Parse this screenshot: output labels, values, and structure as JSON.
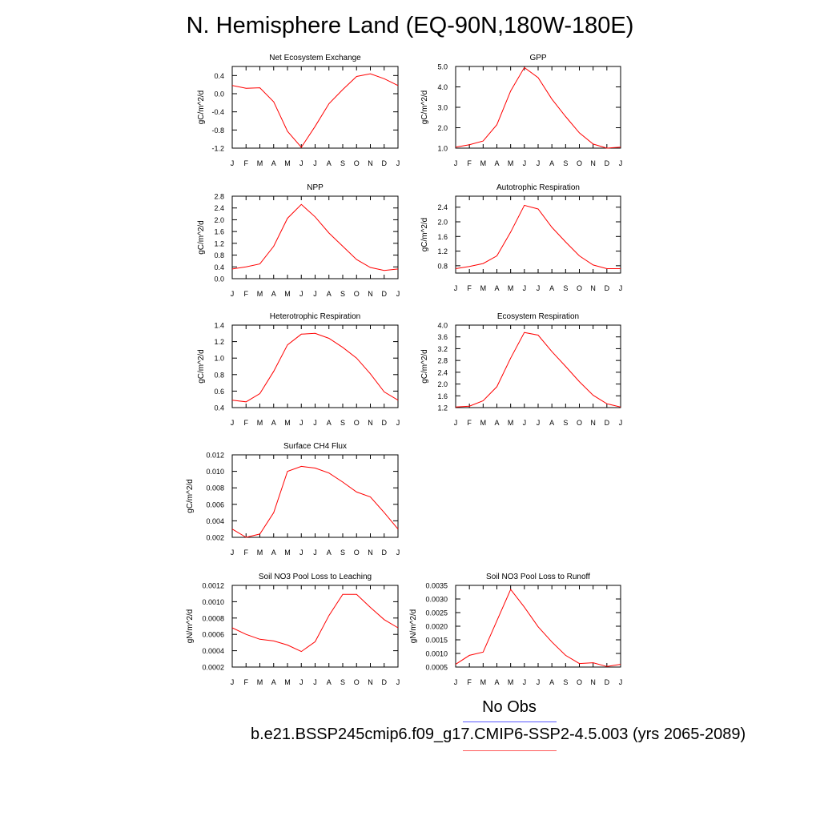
{
  "title": "N. Hemisphere Land (EQ-90N,180W-180E)",
  "legend": {
    "obs_label": "No Obs",
    "run_label": "b.e21.BSSP245cmip6.f09_g17.CMIP6-SSP2-4.5.003 (yrs 2065-2089)",
    "obs_color": "#5a5aff",
    "run_color": "#ff5a5a"
  },
  "series_color": "#ff0000",
  "chart_data": [
    {
      "type": "line",
      "title": "Net Ecosystem Exchange",
      "ylabel": "gC/m^2/d",
      "categories": [
        "J",
        "F",
        "M",
        "A",
        "M",
        "J",
        "J",
        "A",
        "S",
        "O",
        "N",
        "D",
        "J"
      ],
      "values": [
        0.18,
        0.12,
        0.13,
        -0.18,
        -0.83,
        -1.18,
        -0.72,
        -0.22,
        0.09,
        0.38,
        0.44,
        0.33,
        0.18
      ],
      "ylim": [
        -1.2,
        0.6
      ],
      "yticks": [
        -1.2,
        -0.8,
        -0.4,
        0.0,
        0.4
      ],
      "ytick_labels": [
        "-1.2",
        "-0.8",
        "-0.4",
        "0.0",
        "0.4"
      ]
    },
    {
      "type": "line",
      "title": "GPP",
      "ylabel": "gC/m^2/d",
      "categories": [
        "J",
        "F",
        "M",
        "A",
        "M",
        "J",
        "J",
        "A",
        "S",
        "O",
        "N",
        "D",
        "J"
      ],
      "values": [
        1.05,
        1.17,
        1.35,
        2.15,
        3.8,
        4.95,
        4.45,
        3.4,
        2.55,
        1.75,
        1.2,
        1.0,
        1.05
      ],
      "ylim": [
        1.0,
        5.0
      ],
      "yticks": [
        1.0,
        2.0,
        3.0,
        4.0,
        5.0
      ],
      "ytick_labels": [
        "1.0",
        "2.0",
        "3.0",
        "4.0",
        "5.0"
      ]
    },
    {
      "type": "line",
      "title": "NPP",
      "ylabel": "gC/m^2/d",
      "categories": [
        "J",
        "F",
        "M",
        "A",
        "M",
        "J",
        "J",
        "A",
        "S",
        "O",
        "N",
        "D",
        "J"
      ],
      "values": [
        0.33,
        0.4,
        0.5,
        1.1,
        2.05,
        2.52,
        2.1,
        1.55,
        1.1,
        0.65,
        0.38,
        0.28,
        0.33
      ],
      "ylim": [
        0.0,
        2.8
      ],
      "yticks": [
        0.0,
        0.4,
        0.8,
        1.2,
        1.6,
        2.0,
        2.4,
        2.8
      ],
      "ytick_labels": [
        "0.0",
        "0.4",
        "0.8",
        "1.2",
        "1.6",
        "2.0",
        "2.4",
        "2.8"
      ]
    },
    {
      "type": "line",
      "title": "Autotrophic Respiration",
      "ylabel": "gC/m^2/d",
      "categories": [
        "J",
        "F",
        "M",
        "A",
        "M",
        "J",
        "J",
        "A",
        "S",
        "O",
        "N",
        "D",
        "J"
      ],
      "values": [
        0.72,
        0.78,
        0.86,
        1.07,
        1.72,
        2.45,
        2.35,
        1.85,
        1.45,
        1.07,
        0.82,
        0.72,
        0.72
      ],
      "ylim": [
        0.6,
        2.7
      ],
      "yticks": [
        0.8,
        1.2,
        1.6,
        2.0,
        2.4
      ],
      "ytick_labels": [
        "0.8",
        "1.2",
        "1.6",
        "2.0",
        "2.4"
      ]
    },
    {
      "type": "line",
      "title": "Heterotrophic Respiration",
      "ylabel": "gC/m^2/d",
      "categories": [
        "J",
        "F",
        "M",
        "A",
        "M",
        "J",
        "J",
        "A",
        "S",
        "O",
        "N",
        "D",
        "J"
      ],
      "values": [
        0.49,
        0.47,
        0.57,
        0.84,
        1.16,
        1.29,
        1.3,
        1.24,
        1.13,
        1.0,
        0.81,
        0.59,
        0.49
      ],
      "ylim": [
        0.4,
        1.4
      ],
      "yticks": [
        0.4,
        0.6,
        0.8,
        1.0,
        1.2,
        1.4
      ],
      "ytick_labels": [
        "0.4",
        "0.6",
        "0.8",
        "1.0",
        "1.2",
        "1.4"
      ]
    },
    {
      "type": "line",
      "title": "Ecosystem Respiration",
      "ylabel": "gC/m^2/d",
      "categories": [
        "J",
        "F",
        "M",
        "A",
        "M",
        "J",
        "J",
        "A",
        "S",
        "O",
        "N",
        "D",
        "J"
      ],
      "values": [
        1.22,
        1.25,
        1.43,
        1.91,
        2.88,
        3.75,
        3.66,
        3.1,
        2.6,
        2.08,
        1.62,
        1.33,
        1.22
      ],
      "ylim": [
        1.2,
        4.0
      ],
      "yticks": [
        1.2,
        1.6,
        2.0,
        2.4,
        2.8,
        3.2,
        3.6,
        4.0
      ],
      "ytick_labels": [
        "1.2",
        "1.6",
        "2.0",
        "2.4",
        "2.8",
        "3.2",
        "3.6",
        "4.0"
      ]
    },
    {
      "type": "line",
      "title": "Surface CH4 Flux",
      "ylabel": "gC/m^2/d",
      "categories": [
        "J",
        "F",
        "M",
        "A",
        "M",
        "J",
        "J",
        "A",
        "S",
        "O",
        "N",
        "D",
        "J"
      ],
      "values": [
        0.003,
        0.002,
        0.0024,
        0.005,
        0.01,
        0.0106,
        0.0104,
        0.0098,
        0.0087,
        0.0075,
        0.0069,
        0.005,
        0.003
      ],
      "ylim": [
        0.002,
        0.012
      ],
      "yticks": [
        0.002,
        0.004,
        0.006,
        0.008,
        0.01,
        0.012
      ],
      "ytick_labels": [
        "0.002",
        "0.004",
        "0.006",
        "0.008",
        "0.010",
        "0.012"
      ]
    },
    {
      "type": "line",
      "title": "Soil NO3 Pool Loss to Leaching",
      "ylabel": "gN/m^2/d",
      "categories": [
        "J",
        "F",
        "M",
        "A",
        "M",
        "J",
        "J",
        "A",
        "S",
        "O",
        "N",
        "D",
        "J"
      ],
      "values": [
        0.00068,
        0.0006,
        0.00054,
        0.00052,
        0.00047,
        0.00039,
        0.00051,
        0.00083,
        0.00109,
        0.00109,
        0.00093,
        0.00078,
        0.00068
      ],
      "ylim": [
        0.0002,
        0.0012
      ],
      "yticks": [
        0.0002,
        0.0004,
        0.0006,
        0.0008,
        0.001,
        0.0012
      ],
      "ytick_labels": [
        "0.0002",
        "0.0004",
        "0.0006",
        "0.0008",
        "0.0010",
        "0.0012"
      ]
    },
    {
      "type": "line",
      "title": "Soil NO3 Pool Loss to Runoff",
      "ylabel": "gN/m^2/d",
      "categories": [
        "J",
        "F",
        "M",
        "A",
        "M",
        "J",
        "J",
        "A",
        "S",
        "O",
        "N",
        "D",
        "J"
      ],
      "values": [
        0.0006,
        0.00093,
        0.00105,
        0.0022,
        0.00335,
        0.0027,
        0.00198,
        0.00142,
        0.00093,
        0.00063,
        0.00066,
        0.00052,
        0.0006
      ],
      "ylim": [
        0.0005,
        0.0035
      ],
      "yticks": [
        0.0005,
        0.001,
        0.0015,
        0.002,
        0.0025,
        0.003,
        0.0035
      ],
      "ytick_labels": [
        "0.0005",
        "0.0010",
        "0.0015",
        "0.0020",
        "0.0025",
        "0.0030",
        "0.0035"
      ]
    }
  ]
}
